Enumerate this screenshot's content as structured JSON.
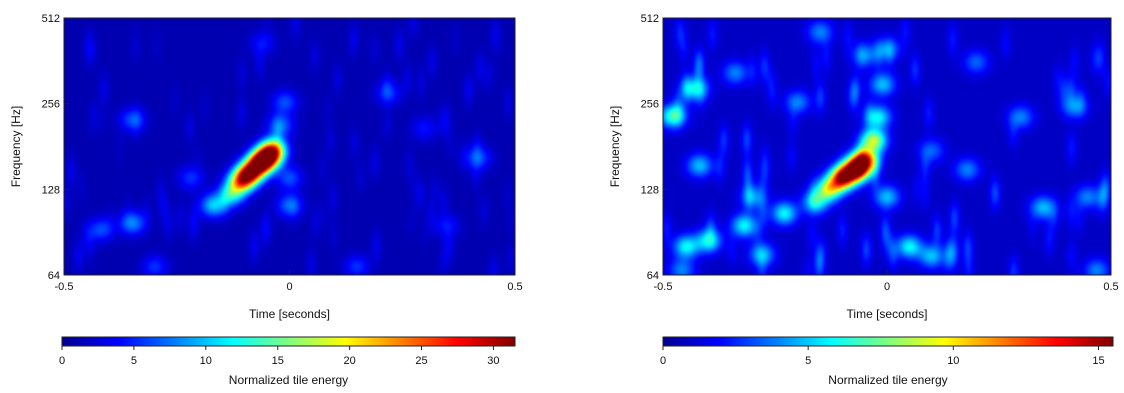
{
  "chart_data": [
    {
      "type": "heatmap",
      "title": "",
      "xlabel": "Time [seconds]",
      "ylabel": "Frequency [Hz]",
      "xlim": [
        -0.5,
        0.5
      ],
      "ylim": [
        64,
        512
      ],
      "y_scale": "log2",
      "x_ticks": [
        -0.5,
        0,
        0.5
      ],
      "x_tick_labels": [
        "-0.5",
        "0",
        "0.5"
      ],
      "y_ticks": [
        64,
        128,
        256,
        512
      ],
      "y_tick_labels": [
        "64",
        "128",
        "256",
        "512"
      ],
      "colorbar": {
        "label": "Normalized tile energy",
        "range": [
          0,
          31.5
        ],
        "ticks": [
          0,
          5,
          10,
          15,
          20,
          25,
          30
        ],
        "tick_labels": [
          "0",
          "5",
          "10",
          "15",
          "20",
          "25",
          "30"
        ],
        "colormap": "jet"
      },
      "blobs": [
        {
          "t": -0.065,
          "f": 158,
          "energy": 31
        },
        {
          "t": -0.09,
          "f": 145,
          "energy": 27
        },
        {
          "t": -0.045,
          "f": 168,
          "energy": 24
        },
        {
          "t": -0.11,
          "f": 135,
          "energy": 18
        },
        {
          "t": -0.035,
          "f": 178,
          "energy": 14
        },
        {
          "t": -0.17,
          "f": 112,
          "energy": 9
        },
        {
          "t": -0.13,
          "f": 122,
          "energy": 10
        },
        {
          "t": -0.02,
          "f": 215,
          "energy": 6
        },
        {
          "t": -0.01,
          "f": 260,
          "energy": 5
        },
        {
          "t": -0.35,
          "f": 97,
          "energy": 7
        },
        {
          "t": -0.42,
          "f": 92,
          "energy": 5
        },
        {
          "t": 0.0,
          "f": 112,
          "energy": 6
        },
        {
          "t": 0.0,
          "f": 140,
          "energy": 5
        },
        {
          "t": -0.22,
          "f": 140,
          "energy": 4
        },
        {
          "t": -0.35,
          "f": 225,
          "energy": 5
        },
        {
          "t": 0.42,
          "f": 165,
          "energy": 5
        },
        {
          "t": 0.22,
          "f": 280,
          "energy": 4
        },
        {
          "t": 0.15,
          "f": 68,
          "energy": 4
        },
        {
          "t": -0.3,
          "f": 68,
          "energy": 4
        },
        {
          "t": 0.35,
          "f": 95,
          "energy": 3
        },
        {
          "t": -0.06,
          "f": 420,
          "energy": 3
        },
        {
          "t": 0.3,
          "f": 210,
          "energy": 3
        }
      ]
    },
    {
      "type": "heatmap",
      "title": "",
      "xlabel": "Time [seconds]",
      "ylabel": "Frequency [Hz]",
      "xlim": [
        -0.5,
        0.5
      ],
      "ylim": [
        64,
        512
      ],
      "y_scale": "log2",
      "x_ticks": [
        -0.5,
        0,
        0.5
      ],
      "x_tick_labels": [
        "-0.5",
        "0",
        "0.5"
      ],
      "y_ticks": [
        64,
        128,
        256,
        512
      ],
      "y_tick_labels": [
        "64",
        "128",
        "256",
        "512"
      ],
      "colorbar": {
        "label": "Normalized tile energy",
        "range": [
          0,
          15.5
        ],
        "ticks": [
          0,
          5,
          10,
          15
        ],
        "tick_labels": [
          "0",
          "5",
          "10",
          "15"
        ],
        "colormap": "jet"
      },
      "blobs": [
        {
          "t": -0.07,
          "f": 150,
          "energy": 15.5
        },
        {
          "t": -0.1,
          "f": 140,
          "energy": 13
        },
        {
          "t": -0.05,
          "f": 162,
          "energy": 12
        },
        {
          "t": -0.13,
          "f": 128,
          "energy": 8
        },
        {
          "t": -0.03,
          "f": 190,
          "energy": 8
        },
        {
          "t": -0.02,
          "f": 230,
          "energy": 5
        },
        {
          "t": -0.01,
          "f": 300,
          "energy": 4
        },
        {
          "t": 0.0,
          "f": 400,
          "energy": 3
        },
        {
          "t": -0.16,
          "f": 115,
          "energy": 5
        },
        {
          "t": -0.23,
          "f": 105,
          "energy": 5
        },
        {
          "t": -0.32,
          "f": 95,
          "energy": 5
        },
        {
          "t": -0.4,
          "f": 84,
          "energy": 5
        },
        {
          "t": -0.45,
          "f": 80,
          "energy": 5
        },
        {
          "t": 0.05,
          "f": 80,
          "energy": 5
        },
        {
          "t": 0.1,
          "f": 74,
          "energy": 4
        },
        {
          "t": -0.48,
          "f": 232,
          "energy": 6
        },
        {
          "t": -0.43,
          "f": 290,
          "energy": 5
        },
        {
          "t": -0.42,
          "f": 155,
          "energy": 4
        },
        {
          "t": -0.28,
          "f": 75,
          "energy": 4
        },
        {
          "t": -0.3,
          "f": 120,
          "energy": 3
        },
        {
          "t": 0.0,
          "f": 120,
          "energy": 4
        },
        {
          "t": 0.18,
          "f": 150,
          "energy": 3
        },
        {
          "t": 0.35,
          "f": 110,
          "energy": 4
        },
        {
          "t": 0.45,
          "f": 120,
          "energy": 3
        },
        {
          "t": -0.2,
          "f": 260,
          "energy": 3
        },
        {
          "t": 0.3,
          "f": 230,
          "energy": 3
        },
        {
          "t": 0.42,
          "f": 250,
          "energy": 3
        },
        {
          "t": 0.1,
          "f": 175,
          "energy": 2.5
        },
        {
          "t": -0.46,
          "f": 66,
          "energy": 3
        },
        {
          "t": 0.47,
          "f": 66,
          "energy": 3
        },
        {
          "t": -0.15,
          "f": 460,
          "energy": 3
        },
        {
          "t": -0.05,
          "f": 380,
          "energy": 3
        },
        {
          "t": 0.2,
          "f": 360,
          "energy": 2.5
        },
        {
          "t": -0.34,
          "f": 330,
          "energy": 3
        }
      ]
    }
  ]
}
